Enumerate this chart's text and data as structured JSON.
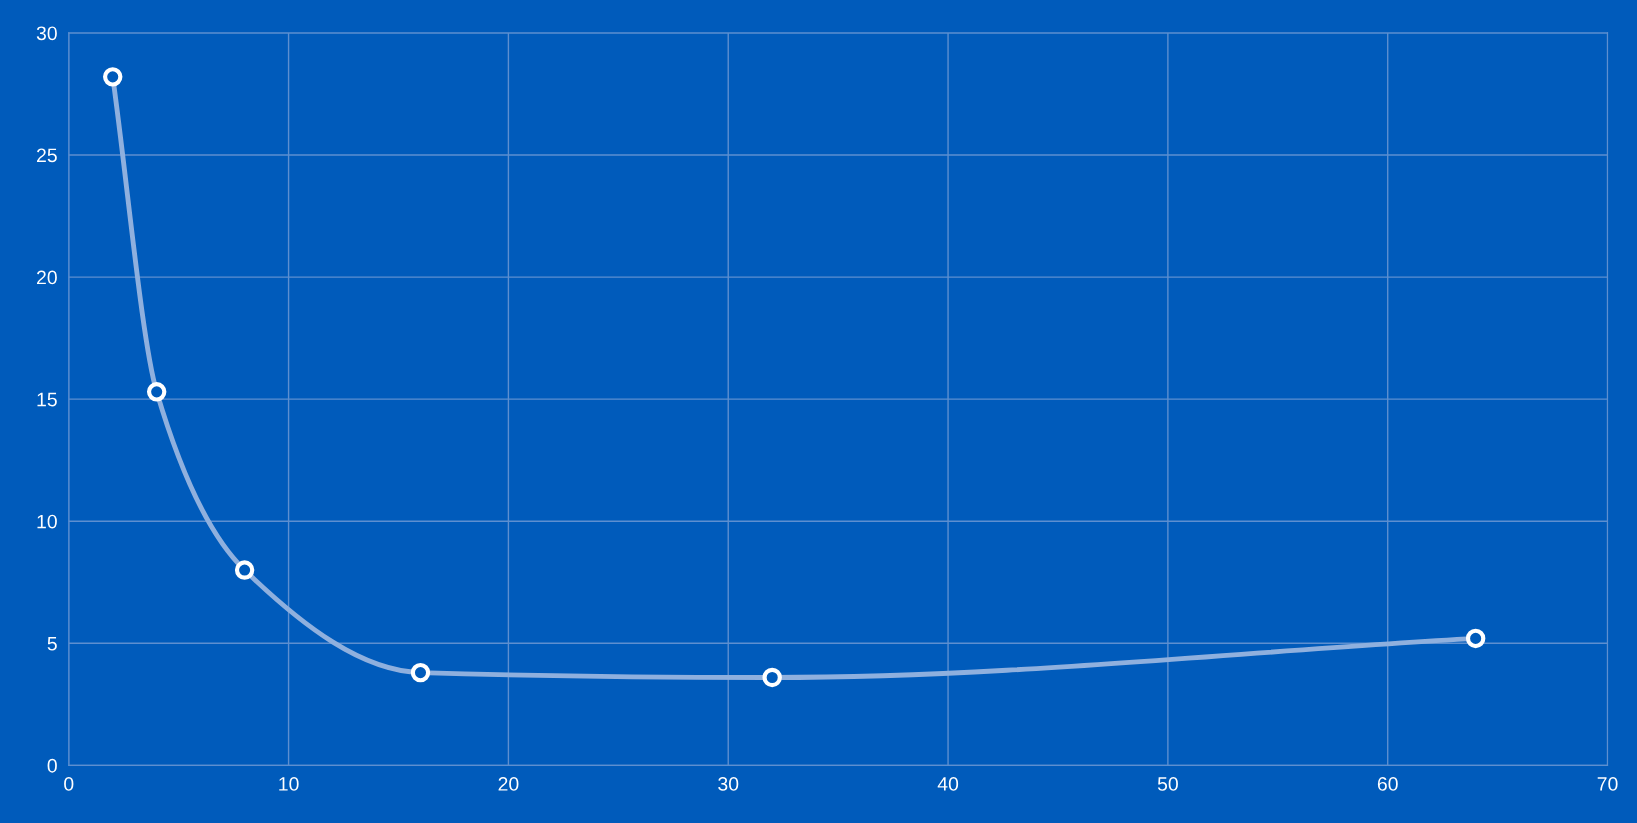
{
  "chart_data": {
    "type": "line",
    "x": [
      2,
      4,
      8,
      16,
      32,
      64
    ],
    "series": [
      {
        "color": "#8fb0de",
        "values": [
          28.2,
          15.3,
          8.0,
          3.8,
          3.6,
          5.2
        ]
      }
    ],
    "xlim": [
      0,
      70
    ],
    "xticks": [
      0,
      10,
      20,
      30,
      40,
      50,
      60,
      70
    ],
    "ylim": [
      0,
      30
    ],
    "yticks": [
      0,
      5,
      10,
      15,
      20,
      25,
      30
    ],
    "grid": true,
    "marker": "circle",
    "line_style": "solid"
  }
}
